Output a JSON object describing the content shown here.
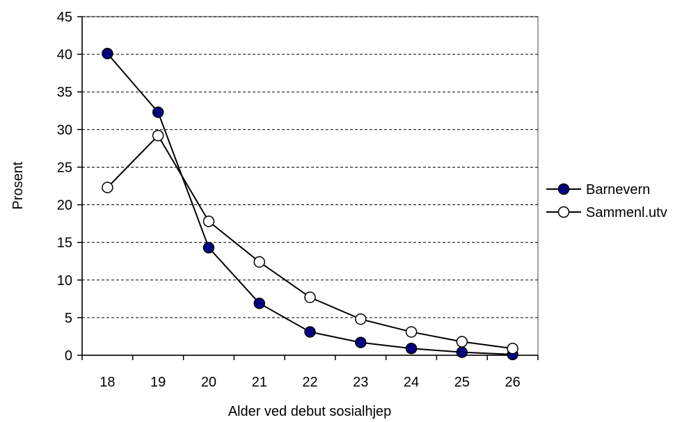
{
  "chart_data": {
    "type": "line",
    "title": "",
    "xlabel": "Alder ved debut sosialhjep",
    "ylabel": "Prosent",
    "categories": [
      "18",
      "19",
      "20",
      "21",
      "22",
      "23",
      "24",
      "25",
      "26"
    ],
    "ylim": [
      0,
      45
    ],
    "yticks": [
      "0",
      "5",
      "10",
      "15",
      "20",
      "25",
      "30",
      "35",
      "40",
      "45"
    ],
    "grid": "horizontal dashed",
    "legend_position": "right",
    "series": [
      {
        "name": "Barnevern",
        "marker": "filled-circle",
        "color": "#000080",
        "values": [
          40.1,
          32.3,
          14.3,
          6.9,
          3.1,
          1.7,
          0.9,
          0.4,
          0.1
        ]
      },
      {
        "name": "Sammenl.utv",
        "marker": "open-circle",
        "color": "#ffffff",
        "values": [
          22.3,
          29.2,
          17.8,
          12.4,
          7.7,
          4.8,
          3.1,
          1.8,
          0.9
        ]
      }
    ]
  }
}
